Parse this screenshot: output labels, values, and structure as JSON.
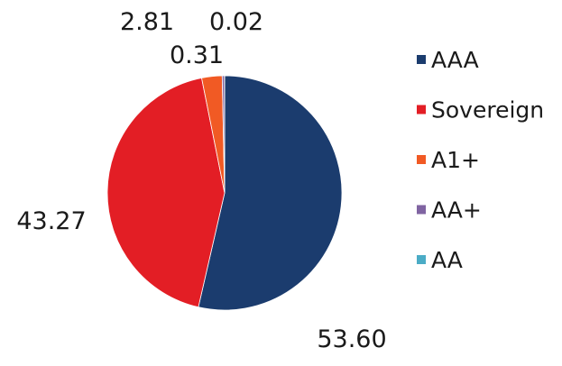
{
  "chart_data": {
    "type": "pie",
    "title": "",
    "slices": [
      {
        "label": "AAA",
        "value": 53.6,
        "display": "53.60",
        "color": "#1b3c6e"
      },
      {
        "label": "Sovereign",
        "value": 43.27,
        "display": "43.27",
        "color": "#e31e25"
      },
      {
        "label": "A1+",
        "value": 2.81,
        "display": "2.81",
        "color": "#f15a24"
      },
      {
        "label": "AA+",
        "value": 0.31,
        "display": "0.31",
        "color": "#8064a2"
      },
      {
        "label": "AA",
        "value": 0.02,
        "display": "0.02",
        "color": "#4bacc6"
      }
    ],
    "legend_position": "right",
    "start_angle_deg": 0,
    "direction": "clockwise"
  }
}
